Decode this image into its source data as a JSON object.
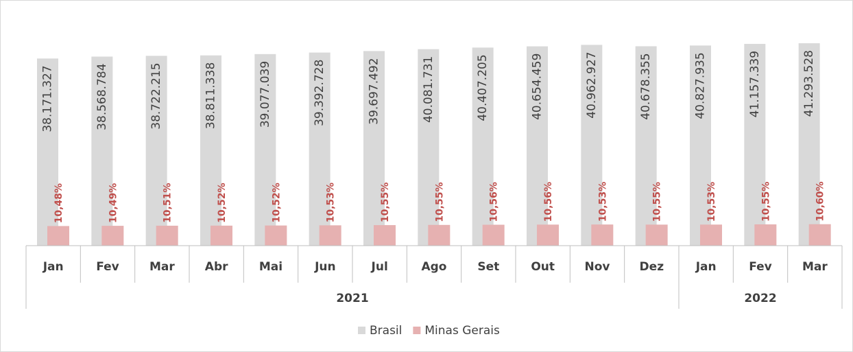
{
  "chart_data": {
    "type": "bar",
    "categories": [
      "Jan",
      "Fev",
      "Mar",
      "Abr",
      "Mai",
      "Jun",
      "Jul",
      "Ago",
      "Set",
      "Out",
      "Nov",
      "Dez",
      "Jan",
      "Fev",
      "Mar"
    ],
    "groups": [
      {
        "label": "2021",
        "span": 12
      },
      {
        "label": "2022",
        "span": 3
      }
    ],
    "series": [
      {
        "name": "Brasil",
        "color": "#d9d9d9",
        "values": [
          38171327,
          38568784,
          38722215,
          38811338,
          39077039,
          39392728,
          39697492,
          40081731,
          40407205,
          40654459,
          40962927,
          40678355,
          40827935,
          41157339,
          41293528
        ],
        "value_labels": [
          "38.171.327",
          "38.568.784",
          "38.722.215",
          "38.811.338",
          "39.077.039",
          "39.392.728",
          "39.697.492",
          "40.081.731",
          "40.407.205",
          "40.654.459",
          "40.962.927",
          "40.678.355",
          "40.827.935",
          "41.157.339",
          "41.293.528"
        ]
      },
      {
        "name": "Minas Gerais",
        "color": "#e6b1b1",
        "label_color": "#c0504d",
        "values": [
          10.48,
          10.49,
          10.51,
          10.52,
          10.52,
          10.53,
          10.55,
          10.55,
          10.56,
          10.56,
          10.53,
          10.55,
          10.53,
          10.55,
          10.6
        ],
        "value_labels": [
          "10,48%",
          "10,49%",
          "10,51%",
          "10,52%",
          "10,52%",
          "10,53%",
          "10,55%",
          "10,55%",
          "10,56%",
          "10,56%",
          "10,53%",
          "10,55%",
          "10,53%",
          "10,55%",
          "10,60%"
        ]
      }
    ],
    "legend": "bottom"
  }
}
